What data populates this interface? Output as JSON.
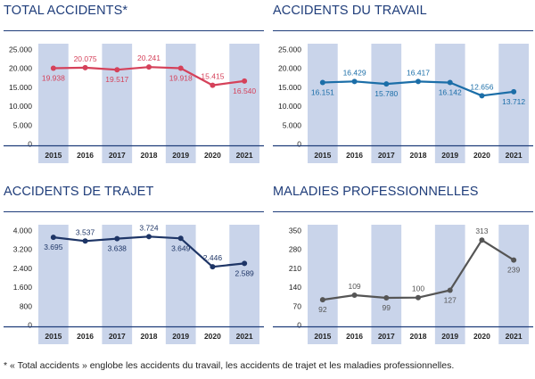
{
  "chart_data": [
    {
      "type": "line",
      "title": "TOTAL ACCIDENTS*",
      "categories": [
        "2015",
        "2016",
        "2017",
        "2018",
        "2019",
        "2020",
        "2021"
      ],
      "values": [
        19938,
        20075,
        19517,
        20241,
        19918,
        15415,
        16540
      ],
      "value_labels": [
        "19.938",
        "20.075",
        "19.517",
        "20.241",
        "19.918",
        "15.415",
        "16.540"
      ],
      "label_pos": [
        "below",
        "above",
        "below",
        "above",
        "below",
        "above",
        "below"
      ],
      "yticks": [
        0,
        5000,
        10000,
        15000,
        20000,
        25000
      ],
      "ytick_labels": [
        "0",
        "5.000",
        "10.000",
        "15.000",
        "20.000",
        "25.000"
      ],
      "ylim": [
        0,
        25000
      ],
      "color": "#d5415a",
      "label_color": "#d5415a"
    },
    {
      "type": "line",
      "title": "ACCIDENTS DU TRAVAIL",
      "categories": [
        "2015",
        "2016",
        "2017",
        "2018",
        "2019",
        "2020",
        "2021"
      ],
      "values": [
        16151,
        16429,
        15780,
        16417,
        16142,
        12656,
        13712
      ],
      "value_labels": [
        "16.151",
        "16.429",
        "15.780",
        "16.417",
        "16.142",
        "12.656",
        "13.712"
      ],
      "label_pos": [
        "below",
        "above",
        "below",
        "above",
        "below",
        "above",
        "below"
      ],
      "yticks": [
        0,
        5000,
        10000,
        15000,
        20000,
        25000
      ],
      "ytick_labels": [
        "0",
        "5.000",
        "10.000",
        "15.000",
        "20.000",
        "25.000"
      ],
      "ylim": [
        0,
        25000
      ],
      "color": "#1b6ea8",
      "label_color": "#1b6ea8"
    },
    {
      "type": "line",
      "title": "ACCIDENTS DE TRAJET",
      "categories": [
        "2015",
        "2016",
        "2017",
        "2018",
        "2019",
        "2020",
        "2021"
      ],
      "values": [
        3695,
        3537,
        3638,
        3724,
        3649,
        2446,
        2589
      ],
      "value_labels": [
        "3.695",
        "3.537",
        "3.638",
        "3.724",
        "3.649",
        "2.446",
        "2.589"
      ],
      "label_pos": [
        "below",
        "above",
        "below",
        "above",
        "below",
        "above",
        "below"
      ],
      "yticks": [
        0,
        800,
        1600,
        2400,
        3200,
        4000
      ],
      "ytick_labels": [
        "0",
        "800",
        "1.600",
        "2.400",
        "3.200",
        "4.000"
      ],
      "ylim": [
        0,
        4000
      ],
      "color": "#1e3566",
      "label_color": "#1e3566"
    },
    {
      "type": "line",
      "title": "MALADIES PROFESSIONNELLES",
      "categories": [
        "2015",
        "2016",
        "2017",
        "2018",
        "2019",
        "2020",
        "2021"
      ],
      "values": [
        92,
        109,
        99,
        100,
        127,
        313,
        239
      ],
      "value_labels": [
        "92",
        "109",
        "99",
        "100",
        "127",
        "313",
        "239"
      ],
      "label_pos": [
        "below",
        "above",
        "below",
        "above",
        "below",
        "above",
        "below"
      ],
      "yticks": [
        0,
        70,
        140,
        210,
        280,
        350
      ],
      "ytick_labels": [
        "0",
        "70",
        "140",
        "210",
        "280",
        "350"
      ],
      "ylim": [
        0,
        350
      ],
      "color": "#555555",
      "label_color": "#555555"
    }
  ],
  "footnote": "* « Total accidents » englobe les accidents du travail, les accidents de trajet et les maladies professionnelles.",
  "colors": {
    "title": "#1f3d7a",
    "column_band": "#c9d4ea",
    "axis": "#1f3d7a",
    "tick_text": "#222222"
  }
}
